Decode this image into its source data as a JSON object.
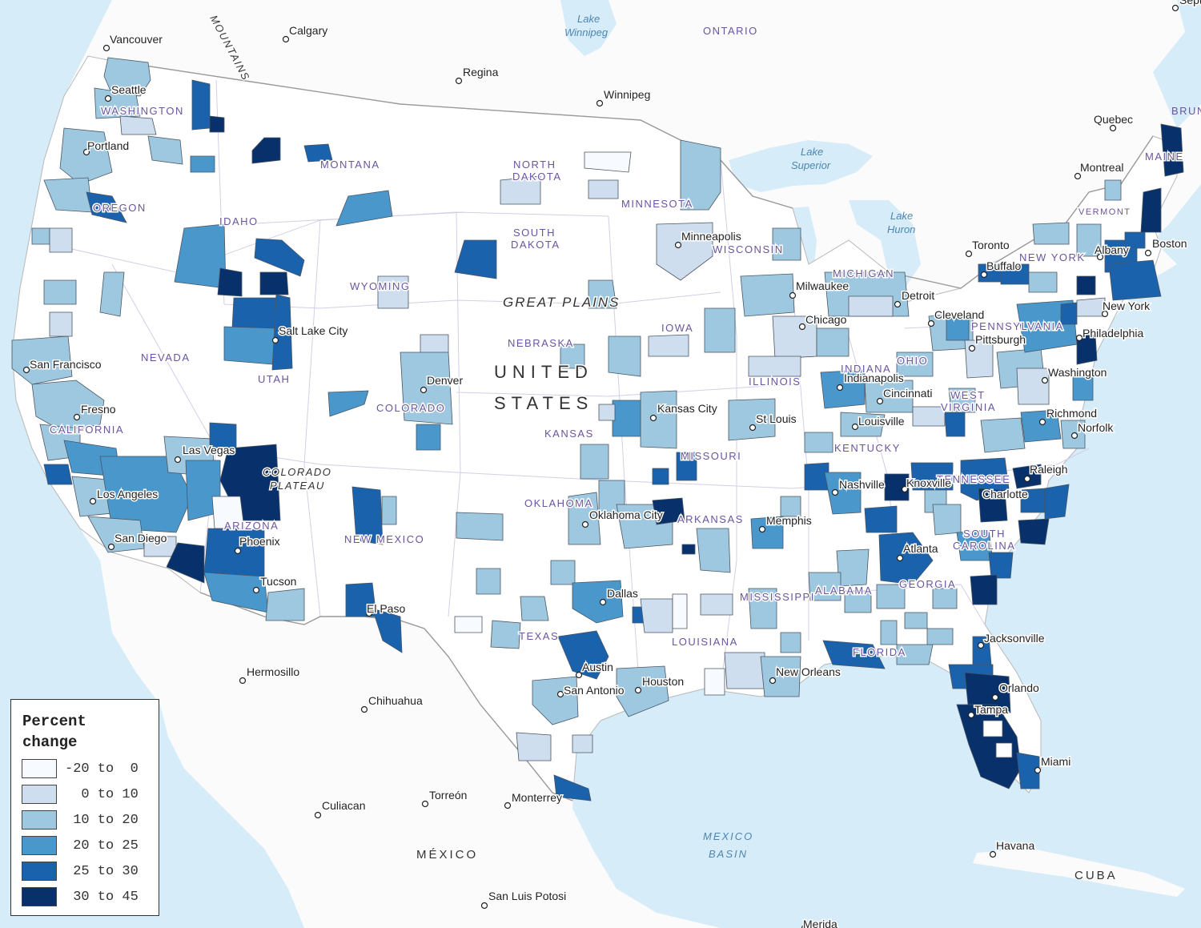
{
  "legend": {
    "title_line1": "Percent",
    "title_line2": "change",
    "classes": [
      {
        "label": "-20 to  0",
        "color": "#f7fbff"
      },
      {
        "label": "  0 to 10",
        "color": "#cfdeef"
      },
      {
        "label": " 10 to 20",
        "color": "#9ec8e0"
      },
      {
        "label": " 20 to 25",
        "color": "#4a97cc"
      },
      {
        "label": " 25 to 30",
        "color": "#1a62ac"
      },
      {
        "label": " 30 to 45",
        "color": "#08306b"
      }
    ]
  },
  "colors": {
    "ocean": "#d6ecf8",
    "land_us": "#ffffff",
    "land_other": "#fbfbfb",
    "borders": "#9a9a9a"
  },
  "countries": {
    "usa_line1": "UNITED",
    "usa_line2": "STATES",
    "mexico": "MÉXICO",
    "cuba": "CUBA"
  },
  "regions": {
    "great_plains": "GREAT PLAINS",
    "colorado_plateau_1": "COLORADO",
    "colorado_plateau_2": "PLATEAU",
    "mountains": "MOUNTAINS"
  },
  "water_labels": {
    "lake_winnipeg_1": "Lake",
    "lake_winnipeg_2": "Winnipeg",
    "lake_superior_1": "Lake",
    "lake_superior_2": "Superior",
    "lake_huron_1": "Lake",
    "lake_huron_2": "Huron",
    "mexico_basin_1": "MEXICO",
    "mexico_basin_2": "BASIN"
  },
  "provinces": {
    "ontario": "ONTARIO",
    "brunswick": "BRUN"
  },
  "states": {
    "washington": "WASHINGTON",
    "oregon": "OREGON",
    "idaho": "IDAHO",
    "montana": "MONTANA",
    "wyoming": "WYOMING",
    "nevada": "NEVADA",
    "utah": "UTAH",
    "california": "CALIFORNIA",
    "arizona": "ARIZONA",
    "colorado": "COLORADO",
    "new_mexico": "NEW MEXICO",
    "north_dakota_1": "NORTH",
    "north_dakota_2": "DAKOTA",
    "south_dakota_1": "SOUTH",
    "south_dakota_2": "DAKOTA",
    "nebraska": "NEBRASKA",
    "kansas": "KANSAS",
    "oklahoma": "OKLAHOMA",
    "texas": "TEXAS",
    "minnesota": "MINNESOTA",
    "iowa": "IOWA",
    "missouri": "MISSOURI",
    "arkansas": "ARKANSAS",
    "louisiana": "LOUISIANA",
    "wisconsin": "WISCONSIN",
    "illinois": "ILLINOIS",
    "michigan": "MICHIGAN",
    "indiana": "INDIANA",
    "ohio": "OHIO",
    "kentucky": "KENTUCKY",
    "tennessee": "TENNESSEE",
    "mississippi": "MISSISSIPPI",
    "alabama": "ALABAMA",
    "georgia": "GEORGIA",
    "florida": "FLORIDA",
    "south_carolina_1": "SOUTH",
    "south_carolina_2": "CAROLINA",
    "west_virginia_1": "WEST",
    "west_virginia_2": "VIRGINIA",
    "pennsylvania": "PENNSYLVANIA",
    "new_york": "NEW YORK",
    "vermont": "VERMONT",
    "maine": "MAINE"
  },
  "cities": {
    "vancouver": "Vancouver",
    "calgary": "Calgary",
    "regina": "Regina",
    "winnipeg": "Winnipeg",
    "quebec": "Quebec",
    "montreal": "Montreal",
    "toronto": "Toronto",
    "seattle": "Seattle",
    "portland": "Portland",
    "san_francisco": "San Francisco",
    "fresno": "Fresno",
    "los_angeles": "Los Angeles",
    "san_diego": "San Diego",
    "las_vegas": "Las Vegas",
    "phoenix": "Phoenix",
    "tucson": "Tucson",
    "salt_lake_city": "Salt Lake City",
    "denver": "Denver",
    "el_paso": "El Paso",
    "minneapolis": "Minneapolis",
    "milwaukee": "Milwaukee",
    "chicago": "Chicago",
    "detroit": "Detroit",
    "cleveland": "Cleveland",
    "buffalo": "Buffalo",
    "albany": "Albany",
    "boston": "Boston",
    "new_york": "New York",
    "philadelphia": "Philadelphia",
    "pittsburgh": "Pittsburgh",
    "washington": "Washington",
    "richmond": "Richmond",
    "norfolk": "Norfolk",
    "indianapolis": "Indianapolis",
    "cincinnati": "Cincinnati",
    "louisville": "Louisville",
    "st_louis": "St Louis",
    "kansas_city": "Kansas City",
    "oklahoma_city": "Oklahoma City",
    "dallas": "Dallas",
    "austin": "Austin",
    "san_antonio": "San Antonio",
    "houston": "Houston",
    "memphis": "Memphis",
    "nashville": "Nashville",
    "knoxville": "Knoxville",
    "raleigh": "Raleigh",
    "charlotte": "Charlotte",
    "atlanta": "Atlanta",
    "jacksonville": "Jacksonville",
    "orlando": "Orlando",
    "tampa": "Tampa",
    "miami": "Miami",
    "new_orleans": "New Orleans",
    "hermosillo": "Hermosillo",
    "chihuahua": "Chihuahua",
    "culiacan": "Culiacan",
    "torreon": "Torreón",
    "monterrey": "Monterrey",
    "san_luis_potosi": "San Luis Potosi",
    "havana": "Havana",
    "merida": "Merida",
    "sept": "Sept"
  }
}
